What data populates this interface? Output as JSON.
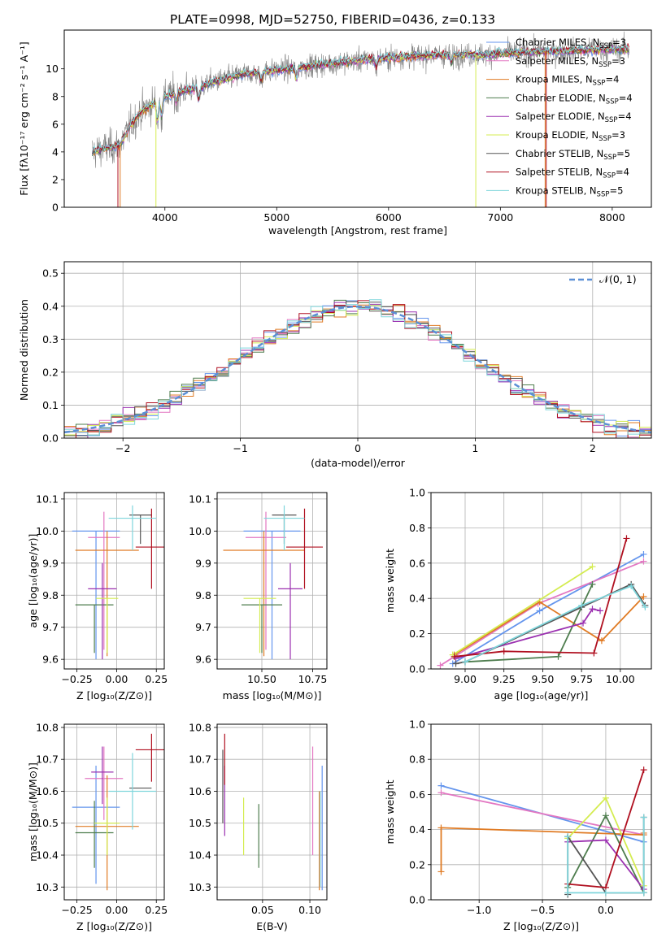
{
  "colors": {
    "chabrier_miles": "#6495ed",
    "salpeter_miles": "#e377c2",
    "kroupa_miles": "#e07b24",
    "chabrier_elodie": "#4e7d4e",
    "salpeter_elodie": "#9b30b0",
    "kroupa_elodie": "#d4ec50",
    "chabrier_stelib": "#555555",
    "salpeter_stelib": "#b01020",
    "kroupa_stelib": "#7fd6dc",
    "data": "#808080"
  },
  "chart_data": [
    {
      "id": "spectrum",
      "type": "line",
      "title": "PLATE=0998, MJD=52750, FIBERID=0436, z=0.133",
      "xlabel": "wavelength [Angstrom, rest frame]",
      "ylabel": "Flux [fλ10⁻¹⁷ erg cm⁻² s⁻¹ A⁻¹]",
      "xlim": [
        3100,
        8350
      ],
      "ylim": [
        0,
        12.8
      ],
      "xticks": [
        "4000",
        "5000",
        "6000",
        "7000",
        "8000"
      ],
      "yticks": [
        "0",
        "2",
        "4",
        "6",
        "8",
        "10"
      ],
      "grid": false,
      "legend_position": "right",
      "legend": [
        {
          "label": "Chabrier MILES, N",
          "sub": "SSP",
          "suffix": "=3",
          "color_key": "chabrier_miles"
        },
        {
          "label": "Salpeter MILES, N",
          "sub": "SSP",
          "suffix": "=3",
          "color_key": "salpeter_miles"
        },
        {
          "label": "Kroupa MILES, N",
          "sub": "SSP",
          "suffix": "=4",
          "color_key": "kroupa_miles"
        },
        {
          "label": "Chabrier ELODIE, N",
          "sub": "SSP",
          "suffix": "=4",
          "color_key": "chabrier_elodie"
        },
        {
          "label": "Salpeter ELODIE, N",
          "sub": "SSP",
          "suffix": "=4",
          "color_key": "salpeter_elodie"
        },
        {
          "label": "Kroupa ELODIE, N",
          "sub": "SSP",
          "suffix": "=3",
          "color_key": "kroupa_elodie"
        },
        {
          "label": "Chabrier STELIB, N",
          "sub": "SSP",
          "suffix": "=5",
          "color_key": "chabrier_stelib"
        },
        {
          "label": "Salpeter STELIB, N",
          "sub": "SSP",
          "suffix": "=4",
          "color_key": "salpeter_stelib"
        },
        {
          "label": "Kroupa STELIB, N",
          "sub": "SSP",
          "suffix": "=5",
          "color_key": "kroupa_stelib"
        }
      ],
      "continuum": [
        [
          3350,
          4.0
        ],
        [
          3500,
          4.3
        ],
        [
          3600,
          4.5
        ],
        [
          3700,
          6.0
        ],
        [
          3800,
          7.0
        ],
        [
          3900,
          7.5
        ],
        [
          4000,
          8.0
        ],
        [
          4100,
          8.2
        ],
        [
          4200,
          8.5
        ],
        [
          4300,
          8.6
        ],
        [
          4400,
          9.0
        ],
        [
          4500,
          9.2
        ],
        [
          4700,
          9.6
        ],
        [
          5000,
          9.9
        ],
        [
          5300,
          10.2
        ],
        [
          5600,
          10.5
        ],
        [
          6000,
          10.8
        ],
        [
          6400,
          11.0
        ],
        [
          6800,
          11.0
        ],
        [
          7200,
          11.2
        ],
        [
          7600,
          11.3
        ],
        [
          8000,
          11.4
        ],
        [
          8150,
          11.4
        ]
      ]
    },
    {
      "id": "residuals",
      "type": "histogram",
      "xlabel": "(data-model)/error",
      "ylabel": "Normed distribution",
      "xlim": [
        -2.5,
        2.5
      ],
      "ylim": [
        0,
        0.535
      ],
      "xticks": [
        "−2",
        "−1",
        "0",
        "1",
        "2"
      ],
      "yticks": [
        "0.0",
        "0.1",
        "0.2",
        "0.3",
        "0.4",
        "0.5"
      ],
      "grid": true,
      "legend_position": "top-right",
      "normal_label": "𝒩(0, 1)",
      "bins": 50
    },
    {
      "id": "age_vs_Z",
      "type": "errorbar",
      "xlabel": "Z [log₁₀(Z/Z⊙)]",
      "ylabel": "age [log₁₀(age/yr)]",
      "xlim": [
        -0.33,
        0.3
      ],
      "ylim": [
        9.57,
        10.12
      ],
      "xticks": [
        "−0.25",
        "0.00",
        "0.25"
      ],
      "yticks": [
        "9.6",
        "9.7",
        "9.8",
        "9.9",
        "10.0",
        "10.1"
      ],
      "grid": true,
      "points": [
        {
          "color_key": "chabrier_miles",
          "x": -0.13,
          "xerr": 0.15,
          "y": 10.0,
          "yerr": [
            0.4,
            0.0
          ]
        },
        {
          "color_key": "salpeter_miles",
          "x": -0.08,
          "xerr": 0.1,
          "y": 9.98,
          "yerr": [
            0.35,
            0.08
          ]
        },
        {
          "color_key": "kroupa_miles",
          "x": -0.06,
          "xerr": 0.2,
          "y": 9.94,
          "yerr": [
            0.33,
            0.06
          ]
        },
        {
          "color_key": "chabrier_elodie",
          "x": -0.14,
          "xerr": 0.12,
          "y": 9.77,
          "yerr": [
            0.15,
            0.0
          ]
        },
        {
          "color_key": "salpeter_elodie",
          "x": -0.09,
          "xerr": 0.09,
          "y": 9.82,
          "yerr": [
            0.22,
            0.08
          ]
        },
        {
          "color_key": "kroupa_elodie",
          "x": -0.06,
          "xerr": 0.07,
          "y": 9.79,
          "yerr": [
            0.17,
            0.0
          ]
        },
        {
          "color_key": "chabrier_stelib",
          "x": 0.15,
          "xerr": 0.07,
          "y": 10.05,
          "yerr": [
            0.09,
            0.0
          ]
        },
        {
          "color_key": "salpeter_stelib",
          "x": 0.22,
          "xerr": 0.1,
          "y": 9.95,
          "yerr": [
            0.13,
            0.12
          ]
        },
        {
          "color_key": "kroupa_stelib",
          "x": 0.1,
          "xerr": 0.15,
          "y": 10.04,
          "yerr": [
            0.1,
            0.04
          ]
        }
      ]
    },
    {
      "id": "age_vs_mass",
      "type": "errorbar",
      "xlabel": "mass [log₁₀(M/M⊙)]",
      "ylabel": "",
      "xlim": [
        10.28,
        10.82
      ],
      "ylim": [
        9.57,
        10.12
      ],
      "xticks": [
        "10.50",
        "10.75"
      ],
      "yticks": [
        "9.6",
        "9.7",
        "9.8",
        "9.9",
        "10.0",
        "10.1"
      ],
      "grid": true,
      "points": [
        {
          "color_key": "chabrier_miles",
          "x": 10.55,
          "xerr": 0.14,
          "y": 10.0,
          "yerr": [
            0.4,
            0.0
          ]
        },
        {
          "color_key": "salpeter_miles",
          "x": 10.52,
          "xerr": 0.1,
          "y": 9.98,
          "yerr": [
            0.35,
            0.08
          ]
        },
        {
          "color_key": "kroupa_miles",
          "x": 10.51,
          "xerr": 0.2,
          "y": 9.94,
          "yerr": [
            0.33,
            0.06
          ]
        },
        {
          "color_key": "chabrier_elodie",
          "x": 10.5,
          "xerr": 0.1,
          "y": 9.77,
          "yerr": [
            0.15,
            0.0
          ]
        },
        {
          "color_key": "salpeter_elodie",
          "x": 10.64,
          "xerr": 0.06,
          "y": 9.82,
          "yerr": [
            0.22,
            0.08
          ]
        },
        {
          "color_key": "kroupa_elodie",
          "x": 10.49,
          "xerr": 0.08,
          "y": 9.79,
          "yerr": [
            0.17,
            0.0
          ]
        },
        {
          "color_key": "chabrier_stelib",
          "x": 10.61,
          "xerr": 0.06,
          "y": 10.05,
          "yerr": [
            0.09,
            0.0
          ]
        },
        {
          "color_key": "salpeter_stelib",
          "x": 10.71,
          "xerr": 0.09,
          "y": 9.95,
          "yerr": [
            0.13,
            0.12
          ]
        },
        {
          "color_key": "kroupa_stelib",
          "x": 10.61,
          "xerr": 0.1,
          "y": 10.04,
          "yerr": [
            0.1,
            0.04
          ]
        }
      ]
    },
    {
      "id": "weight_vs_age",
      "type": "line",
      "xlabel": "age [log₁₀(age/yr)]",
      "ylabel": "mass weight",
      "xlim": [
        8.78,
        10.2
      ],
      "ylim": [
        0,
        1
      ],
      "xticks": [
        "9.00",
        "9.25",
        "9.50",
        "9.75",
        "10.00"
      ],
      "yticks": [
        "0.0",
        "0.2",
        "0.4",
        "0.6",
        "0.8",
        "1.0"
      ],
      "grid": true,
      "series": [
        {
          "color_key": "chabrier_miles",
          "x": [
            8.92,
            9.48,
            10.15
          ],
          "y": [
            0.03,
            0.33,
            0.65
          ]
        },
        {
          "color_key": "salpeter_miles",
          "x": [
            8.84,
            9.47,
            10.15
          ],
          "y": [
            0.02,
            0.37,
            0.61
          ]
        },
        {
          "color_key": "kroupa_miles",
          "x": [
            8.93,
            9.48,
            9.88,
            10.15
          ],
          "y": [
            0.08,
            0.38,
            0.16,
            0.41
          ]
        },
        {
          "color_key": "chabrier_elodie",
          "x": [
            9.0,
            9.6,
            9.75,
            9.82
          ],
          "y": [
            0.04,
            0.07,
            0.35,
            0.48
          ]
        },
        {
          "color_key": "salpeter_elodie",
          "x": [
            8.94,
            9.76,
            9.82,
            9.87
          ],
          "y": [
            0.06,
            0.26,
            0.34,
            0.33
          ]
        },
        {
          "color_key": "kroupa_elodie",
          "x": [
            8.92,
            9.82
          ],
          "y": [
            0.08,
            0.58
          ]
        },
        {
          "color_key": "chabrier_stelib",
          "x": [
            8.94,
            9.0,
            9.75,
            10.07,
            10.16
          ],
          "y": [
            0.03,
            0.04,
            0.35,
            0.48,
            0.36
          ]
        },
        {
          "color_key": "salpeter_stelib",
          "x": [
            8.93,
            9.25,
            9.83,
            10.04
          ],
          "y": [
            0.07,
            0.1,
            0.09,
            0.74
          ]
        },
        {
          "color_key": "kroupa_stelib",
          "x": [
            9.0,
            9.75,
            10.07,
            10.16
          ],
          "y": [
            0.04,
            0.36,
            0.47,
            0.35
          ]
        }
      ]
    },
    {
      "id": "mass_vs_Z",
      "type": "errorbar",
      "xlabel": "Z [log₁₀(Z/Z⊙)]",
      "ylabel": "mass [log₁₀(M/M⊙)]",
      "xlim": [
        -0.33,
        0.3
      ],
      "ylim": [
        10.26,
        10.81
      ],
      "xticks": [
        "−0.25",
        "0.00",
        "0.25"
      ],
      "yticks": [
        "10.3",
        "10.4",
        "10.5",
        "10.6",
        "10.7",
        "10.8"
      ],
      "grid": true,
      "points": [
        {
          "color_key": "chabrier_miles",
          "x": -0.13,
          "xerr": 0.15,
          "y": 10.55,
          "yerr": [
            0.24,
            0.13
          ]
        },
        {
          "color_key": "salpeter_miles",
          "x": -0.08,
          "xerr": 0.12,
          "y": 10.64,
          "yerr": [
            0.13,
            0.1
          ]
        },
        {
          "color_key": "kroupa_miles",
          "x": -0.06,
          "xerr": 0.2,
          "y": 10.49,
          "yerr": [
            0.2,
            0.16
          ]
        },
        {
          "color_key": "chabrier_elodie",
          "x": -0.14,
          "xerr": 0.12,
          "y": 10.47,
          "yerr": [
            0.11,
            0.1
          ]
        },
        {
          "color_key": "salpeter_elodie",
          "x": -0.09,
          "xerr": 0.07,
          "y": 10.66,
          "yerr": [
            0.1,
            0.08
          ]
        },
        {
          "color_key": "kroupa_elodie",
          "x": -0.06,
          "xerr": 0.08,
          "y": 10.5,
          "yerr": [
            0.1,
            0.08
          ]
        },
        {
          "color_key": "chabrier_stelib",
          "x": 0.15,
          "xerr": 0.07,
          "y": 10.61,
          "yerr": [
            0.0,
            0.0
          ]
        },
        {
          "color_key": "salpeter_stelib",
          "x": 0.22,
          "xerr": 0.1,
          "y": 10.73,
          "yerr": [
            0.1,
            0.05
          ]
        },
        {
          "color_key": "kroupa_stelib",
          "x": 0.1,
          "xerr": 0.15,
          "y": 10.6,
          "yerr": [
            0.12,
            0.12
          ]
        }
      ]
    },
    {
      "id": "mass_vs_ebv",
      "type": "errorbar",
      "xlabel": "E(B-V)",
      "ylabel": "",
      "xlim": [
        0.002,
        0.118
      ],
      "ylim": [
        10.26,
        10.81
      ],
      "xticks": [
        "0.05",
        "0.10"
      ],
      "yticks": [
        "10.3",
        "10.4",
        "10.5",
        "10.6",
        "10.7",
        "10.8"
      ],
      "grid": true,
      "points": [
        {
          "color_key": "chabrier_miles",
          "x": 0.113,
          "xerr": 0,
          "y": 10.5,
          "yerr": [
            0.21,
            0.18
          ]
        },
        {
          "color_key": "salpeter_miles",
          "x": 0.103,
          "xerr": 0,
          "y": 10.6,
          "yerr": [
            0.2,
            0.14
          ]
        },
        {
          "color_key": "kroupa_miles",
          "x": 0.11,
          "xerr": 0,
          "y": 10.45,
          "yerr": [
            0.16,
            0.15
          ]
        },
        {
          "color_key": "chabrier_elodie",
          "x": 0.046,
          "xerr": 0,
          "y": 10.46,
          "yerr": [
            0.1,
            0.1
          ]
        },
        {
          "color_key": "salpeter_elodie",
          "x": 0.01,
          "xerr": 0,
          "y": 10.56,
          "yerr": [
            0.1,
            0.12
          ]
        },
        {
          "color_key": "kroupa_elodie",
          "x": 0.03,
          "xerr": 0,
          "y": 10.49,
          "yerr": [
            0.09,
            0.09
          ]
        },
        {
          "color_key": "chabrier_stelib",
          "x": 0.008,
          "xerr": 0,
          "y": 10.6,
          "yerr": [
            0.1,
            0.13
          ]
        },
        {
          "color_key": "salpeter_stelib",
          "x": 0.01,
          "xerr": 0,
          "y": 10.72,
          "yerr": [
            0.1,
            0.06
          ]
        },
        {
          "color_key": "kroupa_stelib",
          "x": 0.111,
          "xerr": 0,
          "y": 10.5,
          "yerr": [
            0.2,
            0.1
          ]
        }
      ]
    },
    {
      "id": "weight_vs_Z",
      "type": "line",
      "xlabel": "Z [log₁₀(Z/Z⊙)]",
      "ylabel": "mass weight",
      "xlim": [
        -1.38,
        0.36
      ],
      "ylim": [
        0,
        1
      ],
      "xticks": [
        "−1.0",
        "−0.5",
        "0.0"
      ],
      "yticks": [
        "0.0",
        "0.2",
        "0.4",
        "0.6",
        "0.8",
        "1.0"
      ],
      "grid": true,
      "series": [
        {
          "color_key": "chabrier_miles",
          "x": [
            -1.3,
            0.3
          ],
          "y": [
            0.65,
            0.33
          ]
        },
        {
          "color_key": "salpeter_miles",
          "x": [
            -1.3,
            0.3
          ],
          "y": [
            0.61,
            0.37
          ]
        },
        {
          "color_key": "kroupa_miles",
          "x": [
            -1.3,
            -1.3,
            0.3,
            0.3
          ],
          "y": [
            0.16,
            0.41,
            0.37,
            0.38
          ]
        },
        {
          "color_key": "chabrier_elodie",
          "x": [
            -0.3,
            0.0,
            0.3
          ],
          "y": [
            0.07,
            0.48,
            0.04
          ]
        },
        {
          "color_key": "salpeter_elodie",
          "x": [
            -0.3,
            0.0,
            0.3
          ],
          "y": [
            0.33,
            0.34,
            0.06
          ]
        },
        {
          "color_key": "kroupa_elodie",
          "x": [
            -0.3,
            0.0,
            0.3
          ],
          "y": [
            0.35,
            0.58,
            0.08
          ]
        },
        {
          "color_key": "chabrier_stelib",
          "x": [
            -0.3,
            -0.3,
            0.0,
            0.3,
            0.3
          ],
          "y": [
            0.03,
            0.36,
            0.04,
            0.04,
            0.47
          ]
        },
        {
          "color_key": "salpeter_stelib",
          "x": [
            -0.3,
            0.0,
            0.3
          ],
          "y": [
            0.09,
            0.07,
            0.74
          ]
        },
        {
          "color_key": "kroupa_stelib",
          "x": [
            -0.3,
            -0.3,
            0.0,
            0.3,
            0.3
          ],
          "y": [
            0.36,
            0.04,
            0.04,
            0.04,
            0.47
          ]
        }
      ]
    }
  ]
}
